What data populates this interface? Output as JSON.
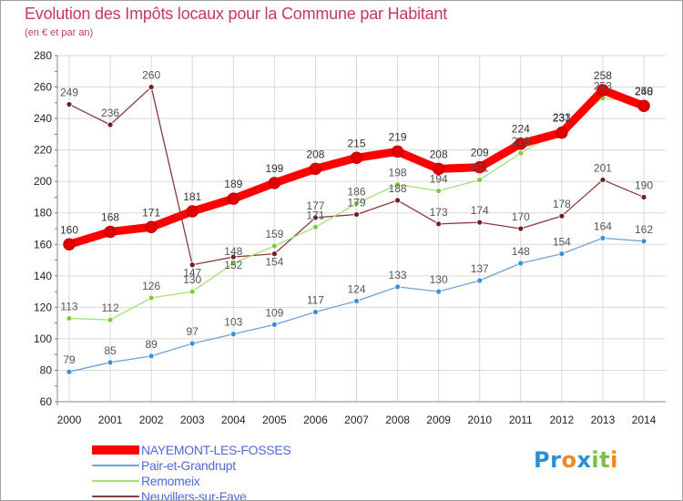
{
  "title": "Evolution des Impôts locaux pour la Commune par Habitant",
  "subtitle": "(en € et par an)",
  "brand": {
    "text": "Proxiti",
    "letters": [
      "P",
      "r",
      "o",
      "x",
      "i",
      "t",
      "i"
    ],
    "colors": [
      "#2a8fd6",
      "#2a8fd6",
      "#f08a1c",
      "#2a8fd6",
      "#79c142",
      "#79c142",
      "#f08a1c"
    ]
  },
  "chart_data": {
    "type": "line",
    "title": "Evolution des Impôts locaux pour la Commune par Habitant",
    "ylabel": "(en € et par an)",
    "xlabel": "",
    "x": [
      "2000",
      "2001",
      "2002",
      "2003",
      "2004",
      "2005",
      "2006",
      "2007",
      "2008",
      "2009",
      "2010",
      "2011",
      "2012",
      "2013",
      "2014"
    ],
    "ylim": [
      60,
      280
    ],
    "yticks": [
      "60",
      "80",
      "100",
      "120",
      "140",
      "160",
      "180",
      "200",
      "220",
      "240",
      "260",
      "280"
    ],
    "grid": true,
    "legend_position": "bottom-left",
    "series": [
      {
        "name": "NAYEMONT-LES-FOSSES",
        "color": "#ff0000",
        "dot_color": "#e00000",
        "label_color": "#333333",
        "label_position": "above",
        "emphasis": true,
        "values": [
          160,
          168,
          171,
          181,
          189,
          199,
          208,
          215,
          219,
          208,
          209,
          224,
          231,
          258,
          248
        ],
        "labels": [
          "160",
          "168",
          "171",
          "181",
          "189",
          "199",
          "208",
          "215",
          "219",
          "208",
          "209",
          "224",
          "231",
          "258",
          "248"
        ]
      },
      {
        "name": "Pair-et-Grandrupt",
        "color": "#6fa3d4",
        "dot_color": "#3d8fd8",
        "label_color": "#555555",
        "label_position": "above",
        "emphasis": false,
        "values": [
          79,
          85,
          89,
          97,
          103,
          109,
          117,
          124,
          133,
          130,
          137,
          148,
          154,
          164,
          162
        ],
        "labels": [
          "79",
          "85",
          "89",
          "97",
          "103",
          "109",
          "117",
          "124",
          "133",
          "130",
          "137",
          "148",
          "154",
          "164",
          "162"
        ]
      },
      {
        "name": "Remomeix",
        "color": "#a6e07a",
        "dot_color": "#7ccc3a",
        "label_color": "#555555",
        "label_position": "above",
        "emphasis": false,
        "values": [
          113,
          112,
          126,
          130,
          148,
          159,
          171,
          186,
          198,
          194,
          201,
          218,
          233,
          253,
          250
        ],
        "labels": [
          "113",
          "112",
          "126",
          "130",
          "148",
          "159",
          "171",
          "186",
          "198",
          "194",
          "201",
          "218",
          "233",
          "253",
          "250"
        ]
      },
      {
        "name": "Neuvillers-sur-Fave",
        "color": "#8b3a3a",
        "dot_color": "#6e1f1f",
        "label_color": "#555555",
        "label_position": "mixed",
        "emphasis": false,
        "values": [
          249,
          236,
          260,
          147,
          152,
          154,
          177,
          179,
          188,
          173,
          174,
          170,
          178,
          201,
          190
        ],
        "labels": [
          "249",
          "236",
          "260",
          "147",
          "152",
          "154",
          "177",
          "179",
          "188",
          "173",
          "174",
          "170",
          "178",
          "201",
          "190"
        ]
      }
    ]
  }
}
